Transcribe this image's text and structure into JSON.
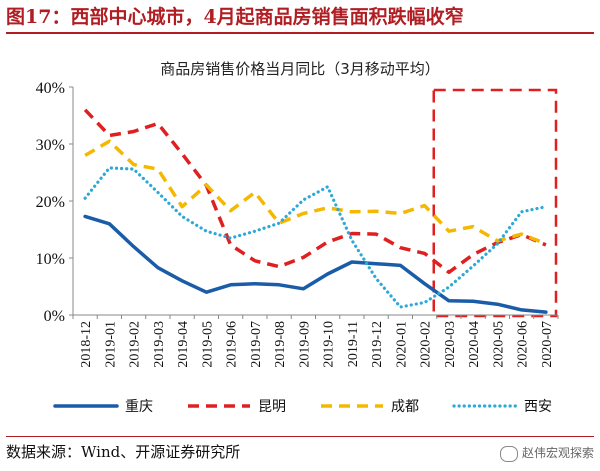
{
  "figure": {
    "title": "图17：西部中心城市，4月起商品房销售面积跌幅收窄",
    "source": "数据来源：Wind、开源证券研究所",
    "watermark": "赵伟宏观探索"
  },
  "colors": {
    "brand_red": "#b01e23",
    "highlight_box": "#e02020",
    "series": [
      "#1a5ca8",
      "#e02020",
      "#f5b800",
      "#2ea8d6"
    ]
  },
  "chart_data": {
    "type": "line",
    "title": "商品房销售价格当月同比（3月移动平均）",
    "categories": [
      "2018-12",
      "2019-01",
      "2019-02",
      "2019-03",
      "2019-04",
      "2019-05",
      "2019-06",
      "2019-07",
      "2019-08",
      "2019-09",
      "2019-10",
      "2019-11",
      "2019-12",
      "2020-01",
      "2020-02",
      "2020-03",
      "2020-04",
      "2020-05",
      "2020-06",
      "2020-07"
    ],
    "ylim": [
      0,
      40
    ],
    "yticks": [
      0,
      10,
      20,
      30,
      40
    ],
    "ytick_labels": [
      "0%",
      "10%",
      "20%",
      "30%",
      "40%"
    ],
    "grid": false,
    "legend_position": "bottom",
    "highlight_range": [
      "2020-03",
      "2020-07"
    ],
    "series": [
      {
        "name": "重庆",
        "style": "solid",
        "values": [
          17.3,
          16.0,
          12.0,
          8.3,
          6.0,
          4.0,
          5.3,
          5.5,
          5.3,
          4.6,
          7.2,
          9.3,
          9.0,
          8.7,
          5.5,
          2.5,
          2.4,
          1.9,
          0.9,
          0.5
        ]
      },
      {
        "name": "昆明",
        "style": "dashed",
        "values": [
          36.0,
          31.5,
          32.2,
          33.6,
          28.3,
          22.7,
          12.3,
          9.5,
          8.5,
          10.1,
          12.8,
          14.3,
          14.2,
          11.8,
          10.8,
          7.5,
          10.6,
          12.7,
          14.1,
          12.3
        ]
      },
      {
        "name": "成都",
        "style": "dashed",
        "values": [
          28.0,
          30.5,
          26.4,
          25.6,
          19.0,
          22.8,
          18.3,
          21.5,
          16.1,
          17.8,
          18.8,
          18.1,
          18.2,
          17.8,
          19.2,
          14.7,
          15.5,
          13.0,
          14.2,
          12.5
        ]
      },
      {
        "name": "西安",
        "style": "dotted",
        "values": [
          20.5,
          25.8,
          25.6,
          21.5,
          17.3,
          14.7,
          13.5,
          14.7,
          16.1,
          20.2,
          22.5,
          13.1,
          6.4,
          1.4,
          2.2,
          4.9,
          8.6,
          12.5,
          18.1,
          19.0
        ]
      }
    ]
  }
}
